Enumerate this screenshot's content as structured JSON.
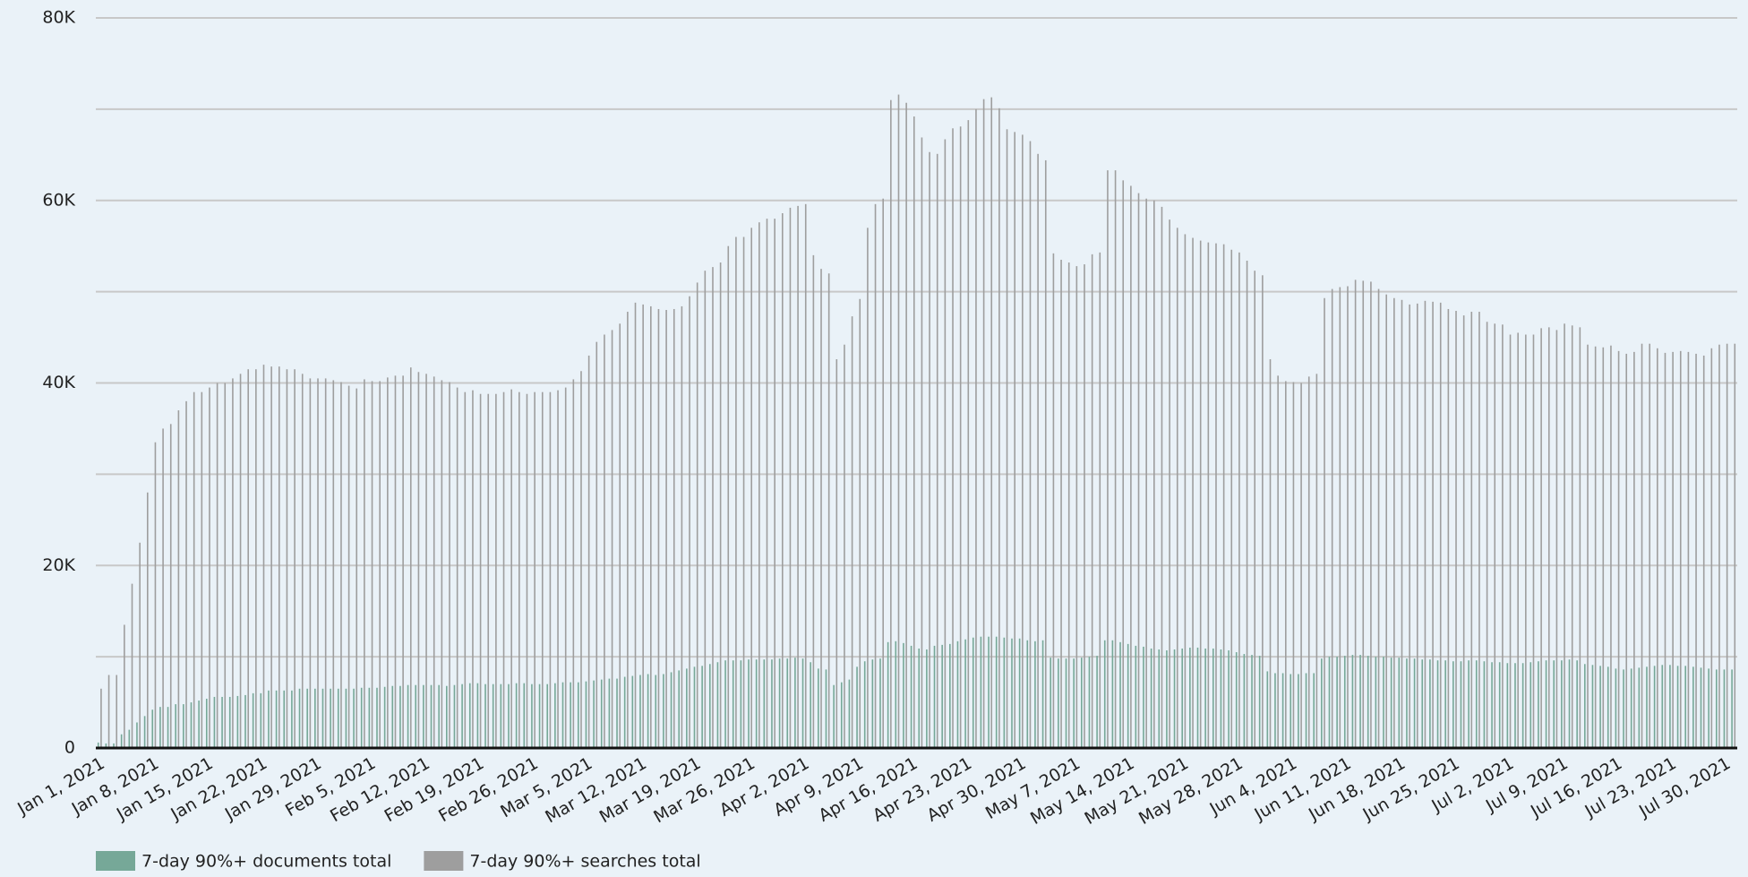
{
  "chart_data": {
    "type": "bar",
    "categories": [
      "Jan 1, 2021",
      null,
      null,
      null,
      null,
      null,
      null,
      "Jan 8, 2021",
      null,
      null,
      null,
      null,
      null,
      null,
      "Jan 15, 2021",
      null,
      null,
      null,
      null,
      null,
      null,
      "Jan 22, 2021",
      null,
      null,
      null,
      null,
      null,
      null,
      "Jan 29, 2021",
      null,
      null,
      null,
      null,
      null,
      null,
      "Feb 5, 2021",
      null,
      null,
      null,
      null,
      null,
      null,
      "Feb 12, 2021",
      null,
      null,
      null,
      null,
      null,
      null,
      "Feb 19, 2021",
      null,
      null,
      null,
      null,
      null,
      null,
      "Feb 26, 2021",
      null,
      null,
      null,
      null,
      null,
      null,
      "Mar 5, 2021",
      null,
      null,
      null,
      null,
      null,
      null,
      "Mar 12, 2021",
      null,
      null,
      null,
      null,
      null,
      null,
      "Mar 19, 2021",
      null,
      null,
      null,
      null,
      null,
      null,
      "Mar 26, 2021",
      null,
      null,
      null,
      null,
      null,
      null,
      "Apr 2, 2021",
      null,
      null,
      null,
      null,
      null,
      null,
      "Apr 9, 2021",
      null,
      null,
      null,
      null,
      null,
      null,
      "Apr 16, 2021",
      null,
      null,
      null,
      null,
      null,
      null,
      "Apr 23, 2021",
      null,
      null,
      null,
      null,
      null,
      null,
      "Apr 30, 2021",
      null,
      null,
      null,
      null,
      null,
      null,
      "May 7, 2021",
      null,
      null,
      null,
      null,
      null,
      null,
      "May 14, 2021",
      null,
      null,
      null,
      null,
      null,
      null,
      "May 21, 2021",
      null,
      null,
      null,
      null,
      null,
      null,
      "May 28, 2021",
      null,
      null,
      null,
      null,
      null,
      null,
      "Jun 4, 2021",
      null,
      null,
      null,
      null,
      null,
      null,
      "Jun 11, 2021",
      null,
      null,
      null,
      null,
      null,
      null,
      "Jun 18, 2021",
      null,
      null,
      null,
      null,
      null,
      null,
      "Jun 25, 2021",
      null,
      null,
      null,
      null,
      null,
      null,
      "Jul 2, 2021",
      null,
      null,
      null,
      null,
      null,
      null,
      "Jul 9, 2021",
      null,
      null,
      null,
      null,
      null,
      null,
      "Jul 16, 2021",
      null,
      null,
      null,
      null,
      null,
      null,
      "Jul 23, 2021",
      null,
      null,
      null,
      null,
      null,
      null,
      "Jul 30, 2021",
      null
    ],
    "series": [
      {
        "name": "7-day 90%+ documents total",
        "color": "#76a898",
        "values": [
          600,
          500,
          500,
          1500,
          2000,
          2800,
          3500,
          4200,
          4500,
          4500,
          4800,
          4800,
          5000,
          5200,
          5400,
          5600,
          5600,
          5600,
          5700,
          5800,
          6000,
          6000,
          6300,
          6300,
          6300,
          6300,
          6500,
          6500,
          6500,
          6500,
          6500,
          6500,
          6500,
          6500,
          6600,
          6600,
          6600,
          6700,
          6800,
          6800,
          6900,
          6900,
          6900,
          6900,
          6900,
          6800,
          6900,
          7000,
          7100,
          7100,
          7000,
          7000,
          7000,
          7000,
          7100,
          7100,
          7000,
          7000,
          7000,
          7100,
          7200,
          7200,
          7200,
          7300,
          7400,
          7500,
          7600,
          7600,
          7800,
          7900,
          8000,
          8100,
          8000,
          8100,
          8300,
          8500,
          8700,
          8900,
          9000,
          9200,
          9400,
          9600,
          9600,
          9600,
          9700,
          9700,
          9700,
          9700,
          9800,
          9800,
          9900,
          9800,
          9400,
          8700,
          8600,
          6900,
          7200,
          7500,
          8900,
          9500,
          9700,
          9800,
          11600,
          11700,
          11500,
          11200,
          10900,
          10800,
          11200,
          11300,
          11400,
          11700,
          11900,
          12100,
          12200,
          12200,
          12200,
          12100,
          12000,
          12000,
          11800,
          11700,
          11800,
          9900,
          9800,
          9800,
          9800,
          9900,
          10000,
          10100,
          11800,
          11800,
          11600,
          11400,
          11200,
          11100,
          10900,
          10800,
          10700,
          10800,
          10900,
          11000,
          11000,
          10900,
          10900,
          10800,
          10700,
          10500,
          10300,
          10200,
          10100,
          8400,
          8200,
          8200,
          8100,
          8100,
          8200,
          8200,
          9800,
          10000,
          10000,
          10100,
          10200,
          10200,
          10100,
          10000,
          10000,
          9900,
          9900,
          9800,
          9800,
          9700,
          9700,
          9600,
          9600,
          9500,
          9500,
          9600,
          9600,
          9500,
          9400,
          9400,
          9300,
          9300,
          9300,
          9400,
          9500,
          9600,
          9600,
          9600,
          9700,
          9600,
          9200,
          9100,
          9000,
          8900,
          8700,
          8600,
          8700,
          8800,
          8900,
          9000,
          9100,
          9100,
          9000,
          9000,
          8900,
          8800,
          8700,
          8600,
          8600,
          8600
        ]
      },
      {
        "name": "7-day 90%+ searches total",
        "color": "#9e9e9e",
        "values": [
          6500,
          8000,
          8000,
          13500,
          18000,
          22500,
          28000,
          33500,
          35000,
          35500,
          37000,
          38000,
          39000,
          39000,
          39500,
          40000,
          40000,
          40500,
          41000,
          41500,
          41500,
          42000,
          41800,
          41800,
          41500,
          41500,
          41000,
          40500,
          40500,
          40500,
          40300,
          40100,
          39700,
          39400,
          40400,
          40200,
          40200,
          40600,
          40800,
          40800,
          41700,
          41200,
          41000,
          40700,
          40300,
          40100,
          39500,
          39000,
          39200,
          38800,
          38800,
          38800,
          39000,
          39300,
          39000,
          38800,
          39000,
          39000,
          39000,
          39200,
          39500,
          40400,
          41300,
          43000,
          44500,
          45300,
          45800,
          46500,
          47800,
          48800,
          48600,
          48400,
          48100,
          48000,
          48100,
          48400,
          49500,
          51000,
          52300,
          52700,
          53200,
          55000,
          56000,
          56000,
          57000,
          57600,
          58000,
          58000,
          58600,
          59200,
          59400,
          59600,
          54000,
          52500,
          52000,
          42600,
          44200,
          47300,
          49200,
          57000,
          59600,
          60200,
          71000,
          71600,
          70700,
          69200,
          66900,
          65300,
          65100,
          66700,
          67900,
          68100,
          68800,
          70000,
          71100,
          71300,
          70100,
          67800,
          67500,
          67200,
          66500,
          65100,
          64400,
          54200,
          53500,
          53200,
          52800,
          53000,
          54100,
          54300,
          63300,
          63300,
          62200,
          61600,
          60800,
          60200,
          60000,
          59300,
          57900,
          57000,
          56300,
          55900,
          55600,
          55400,
          55300,
          55200,
          54600,
          54300,
          53400,
          52300,
          51800,
          42600,
          40800,
          40200,
          40100,
          40000,
          40700,
          41000,
          49300,
          50300,
          50500,
          50600,
          51300,
          51200,
          51100,
          50300,
          49700,
          49300,
          49100,
          48600,
          48700,
          49000,
          48900,
          48800,
          48100,
          47900,
          47400,
          47800,
          47800,
          46700,
          46500,
          46400,
          45300,
          45500,
          45300,
          45300,
          46000,
          46100,
          45800,
          46500,
          46300,
          46100,
          44200,
          44000,
          43900,
          44100,
          43500,
          43200,
          43400,
          44300,
          44300,
          43800,
          43300,
          43400,
          43500,
          43400,
          43200,
          43000,
          43800,
          44200,
          44300,
          44300
        ]
      }
    ],
    "ylim": [
      0,
      80000
    ],
    "yticks": [
      0,
      {
        "value": 20000,
        "label": "20K"
      },
      {
        "value": 40000,
        "label": "40K"
      },
      {
        "value": 60000,
        "label": "60K"
      },
      {
        "value": 80000,
        "label": "80K"
      }
    ],
    "minor_yticks": [
      10000,
      30000,
      50000,
      70000
    ],
    "grid": true,
    "legend": "bottom-left"
  }
}
